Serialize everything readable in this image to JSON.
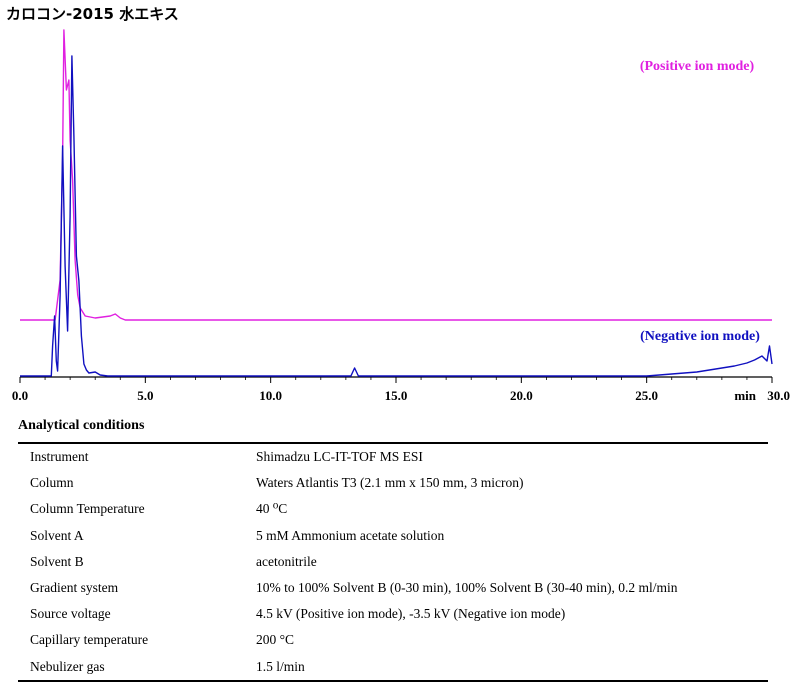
{
  "title": "カロコン-2015 水エキス",
  "chart_data": {
    "type": "line",
    "xlabel": "min",
    "xlim": [
      0,
      30
    ],
    "x_ticks": [
      "0.0",
      "5.0",
      "10.0",
      "15.0",
      "20.0",
      "25.0",
      "30.0"
    ],
    "x_tick_values": [
      0,
      5,
      10,
      15,
      20,
      25,
      30
    ],
    "grid": false,
    "y_axis_shown": false,
    "series": [
      {
        "name": "(Positive ion mode)",
        "color": "#e020e0",
        "x": [
          0,
          1.4,
          1.6,
          1.7,
          1.75,
          1.85,
          1.95,
          2.0,
          2.1,
          2.2,
          2.3,
          2.4,
          2.5,
          2.6,
          2.8,
          3.0,
          3.3,
          3.6,
          3.8,
          4.0,
          4.2,
          30
        ],
        "y": [
          0,
          0,
          40,
          160,
          290,
          230,
          240,
          180,
          140,
          60,
          25,
          12,
          8,
          4,
          3,
          2,
          3,
          4,
          6,
          2,
          0,
          0
        ]
      },
      {
        "name": "(Negative ion mode)",
        "color": "#1010c0",
        "x": [
          0,
          1.25,
          1.3,
          1.38,
          1.45,
          1.5,
          1.6,
          1.7,
          1.8,
          1.9,
          2.0,
          2.07,
          2.15,
          2.25,
          2.35,
          2.45,
          2.55,
          2.65,
          2.75,
          3.0,
          3.2,
          3.5,
          5.0,
          10.0,
          13.2,
          13.35,
          13.5,
          15.0,
          20.0,
          25.0,
          26.0,
          27.0,
          28.0,
          28.5,
          29.0,
          29.3,
          29.6,
          29.8,
          29.9,
          30.0
        ],
        "y": [
          0,
          0,
          30,
          60,
          15,
          5,
          80,
          230,
          110,
          45,
          160,
          320,
          240,
          120,
          95,
          40,
          12,
          6,
          3,
          4,
          1,
          0,
          0,
          0,
          0,
          8,
          0,
          0,
          0,
          0,
          2,
          4,
          8,
          10,
          13,
          16,
          20,
          15,
          30,
          12
        ]
      }
    ]
  },
  "conditions": {
    "heading": "Analytical conditions",
    "rows": [
      {
        "k": "Instrument",
        "v": "Shimadzu LC-IT-TOF MS ESI"
      },
      {
        "k": "Column",
        "v": "Waters Atlantis T3 (2.1 mm x 150 mm, 3 micron)"
      },
      {
        "k": "Column Temperature",
        "v": "40 ⁰C"
      },
      {
        "k": "Solvent A",
        "v": "5 mM Ammonium acetate solution"
      },
      {
        "k": "Solvent B",
        "v": "acetonitrile"
      },
      {
        "k": "Gradient system",
        "v": "10% to 100% Solvent B (0-30 min), 100% Solvent B (30-40 min), 0.2 ml/min"
      },
      {
        "k": "Source voltage",
        "v": "4.5 kV (Positive ion mode), -3.5 kV (Negative ion mode)"
      },
      {
        "k": "Capillary temperature",
        "v": "200 °C"
      },
      {
        "k": "Nebulizer gas",
        "v": "1.5 l/min"
      }
    ]
  }
}
